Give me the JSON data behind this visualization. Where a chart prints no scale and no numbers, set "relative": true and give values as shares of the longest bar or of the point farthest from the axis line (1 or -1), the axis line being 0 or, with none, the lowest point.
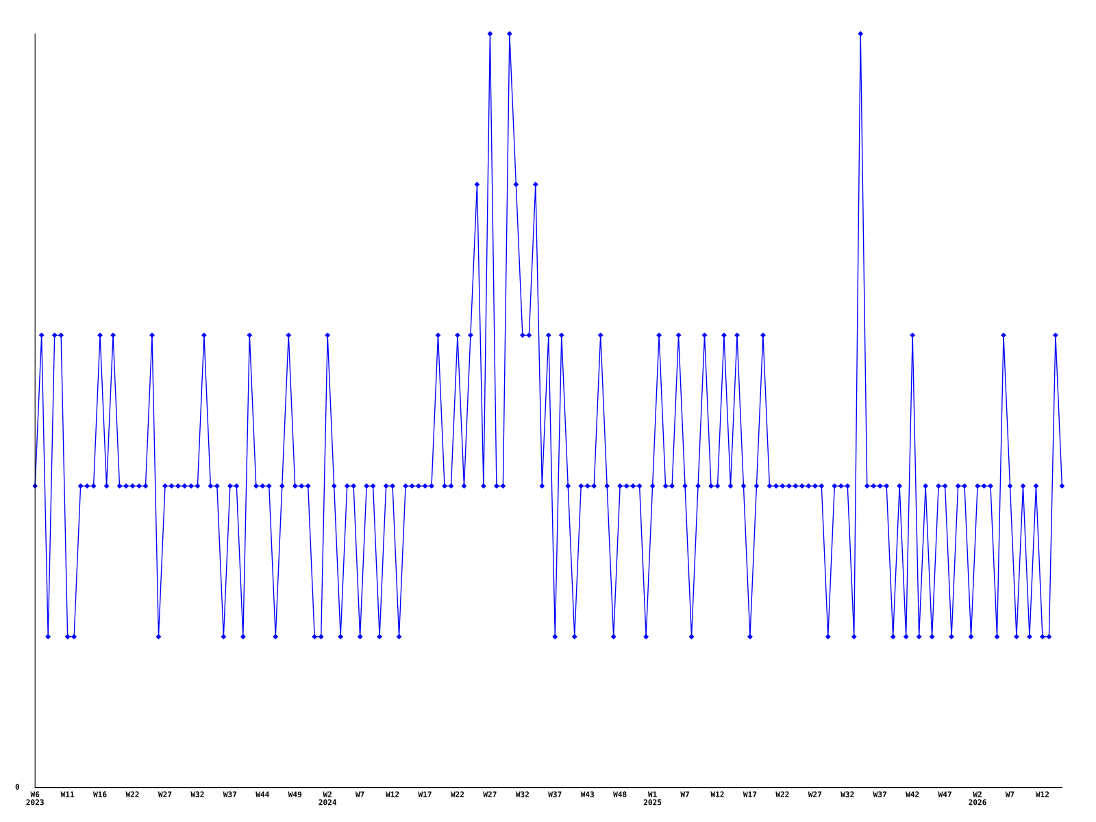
{
  "chart_data": {
    "type": "line",
    "relative": true,
    "marker": "diamond",
    "line_style": "solid",
    "grid": false,
    "categories": [
      "W6\n2023",
      null,
      null,
      null,
      null,
      "W11",
      null,
      null,
      null,
      null,
      "W16",
      null,
      null,
      null,
      null,
      "W22",
      null,
      null,
      null,
      null,
      "W27",
      null,
      null,
      null,
      null,
      "W32",
      null,
      null,
      null,
      null,
      "W37",
      null,
      null,
      null,
      null,
      "W44",
      null,
      null,
      null,
      null,
      "W49",
      null,
      null,
      null,
      null,
      "W2\n2024",
      null,
      null,
      null,
      null,
      "W7",
      null,
      null,
      null,
      null,
      "W12",
      null,
      null,
      null,
      null,
      "W17",
      null,
      null,
      null,
      null,
      "W22",
      null,
      null,
      null,
      null,
      "W27",
      null,
      null,
      null,
      null,
      "W32",
      null,
      null,
      null,
      null,
      "W37",
      null,
      null,
      null,
      null,
      "W43",
      null,
      null,
      null,
      null,
      "W48",
      null,
      null,
      null,
      null,
      "W1\n2025",
      null,
      null,
      null,
      null,
      "W7",
      null,
      null,
      null,
      null,
      "W12",
      null,
      null,
      null,
      null,
      "W17",
      null,
      null,
      null,
      null,
      "W22",
      null,
      null,
      null,
      null,
      "W27",
      null,
      null,
      null,
      null,
      "W32",
      null,
      null,
      null,
      null,
      "W37",
      null,
      null,
      null,
      null,
      "W42",
      null,
      null,
      null,
      null,
      "W47",
      null,
      null,
      null,
      null,
      "W2\n2026",
      null,
      null,
      null,
      null,
      "W7",
      null,
      null,
      null,
      null,
      "W12",
      null,
      null,
      null
    ],
    "series": [
      {
        "color": "#0000ff",
        "values": [
          0.4,
          0.6,
          0.2,
          0.6,
          0.6,
          0.2,
          0.2,
          0.4,
          0.4,
          0.4,
          0.6,
          0.4,
          0.6,
          0.4,
          0.4,
          0.4,
          0.4,
          0.4,
          0.6,
          0.2,
          0.4,
          0.4,
          0.4,
          0.4,
          0.4,
          0.4,
          0.6,
          0.4,
          0.4,
          0.2,
          0.4,
          0.4,
          0.2,
          0.6,
          0.4,
          0.4,
          0.4,
          0.2,
          0.4,
          0.6,
          0.4,
          0.4,
          0.4,
          0.2,
          0.2,
          0.6,
          0.4,
          0.2,
          0.4,
          0.4,
          0.2,
          0.4,
          0.4,
          0.2,
          0.4,
          0.4,
          0.2,
          0.4,
          0.4,
          0.4,
          0.4,
          0.4,
          0.6,
          0.4,
          0.4,
          0.6,
          0.4,
          0.6,
          0.8,
          0.4,
          1,
          0.4,
          0.4,
          1,
          0.8,
          0.6,
          0.6,
          0.8,
          0.4,
          0.6,
          0.2,
          0.6,
          0.4,
          0.2,
          0.4,
          0.4,
          0.4,
          0.6,
          0.4,
          0.2,
          0.4,
          0.4,
          0.4,
          0.4,
          0.2,
          0.4,
          0.6,
          0.4,
          0.4,
          0.6,
          0.4,
          0.2,
          0.4,
          0.6,
          0.4,
          0.4,
          0.6,
          0.4,
          0.6,
          0.4,
          0.2,
          0.4,
          0.6,
          0.4,
          0.4,
          0.4,
          0.4,
          0.4,
          0.4,
          0.4,
          0.4,
          0.4,
          0.2,
          0.4,
          0.4,
          0.4,
          0.2,
          1,
          0.4,
          0.4,
          0.4,
          0.4,
          0.2,
          0.4,
          0.2,
          0.6,
          0.2,
          0.4,
          0.2,
          0.4,
          0.4,
          0.2,
          0.4,
          0.4,
          0.2,
          0.4,
          0.4,
          0.4,
          0.2,
          0.6,
          0.4,
          0.2,
          0.4,
          0.2,
          0.4,
          0.2,
          0.2,
          0.6,
          0.4
        ]
      }
    ],
    "annotations": [
      "0"
    ]
  }
}
